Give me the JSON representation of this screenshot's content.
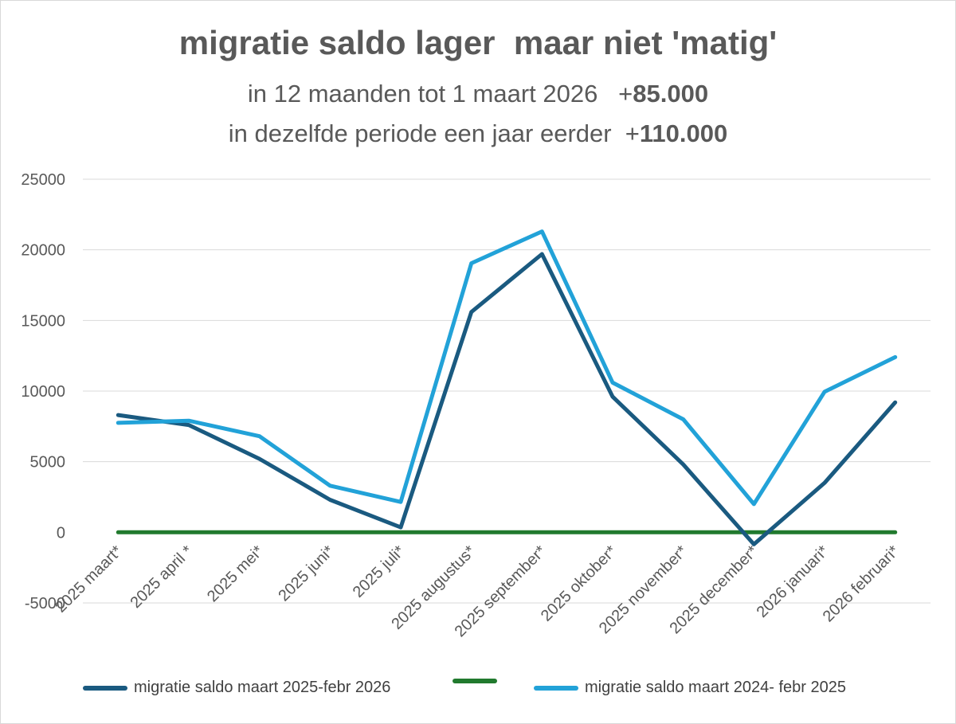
{
  "chart_data": {
    "type": "line",
    "title": "migratie saldo lager  maar niet 'matig'",
    "subtitle_lines": [
      {
        "text": "in 12 maanden tot 1 maart 2026   +",
        "bold": "85.000"
      },
      {
        "text": "in dezelfde periode een jaar eerder  +",
        "bold": "110.000"
      }
    ],
    "categories": [
      "2025 maart*",
      "2025 april *",
      "2025 mei*",
      "2025 juni*",
      "2025 juli*",
      "2025 augustus*",
      "2025 september*",
      "2025 oktober*",
      "2025 november*",
      "2025 december*",
      "2026 januari*",
      "2026 februari*"
    ],
    "y_ticks": [
      "25000",
      "20000",
      "15000",
      "10000",
      "5000",
      "0",
      "-5000"
    ],
    "ylim": [
      -5000,
      25000
    ],
    "grid": true,
    "legend_position": "bottom",
    "series": [
      {
        "name": "migratie saldo maart 2025-febr 2026",
        "color": "#1a5a80",
        "values": [
          8300,
          7600,
          5200,
          2300,
          350,
          15600,
          19700,
          9600,
          4800,
          -850,
          3500,
          9200
        ]
      },
      {
        "name": "",
        "color": "#217a2e",
        "values": [
          0,
          0,
          0,
          0,
          0,
          0,
          0,
          0,
          0,
          0,
          0,
          0
        ]
      },
      {
        "name": "migratie saldo maart 2024- febr 2025",
        "color": "#22a2d8",
        "values": [
          7750,
          7900,
          6800,
          3300,
          2150,
          19050,
          21300,
          10600,
          8000,
          2000,
          9950,
          12400
        ]
      }
    ]
  }
}
